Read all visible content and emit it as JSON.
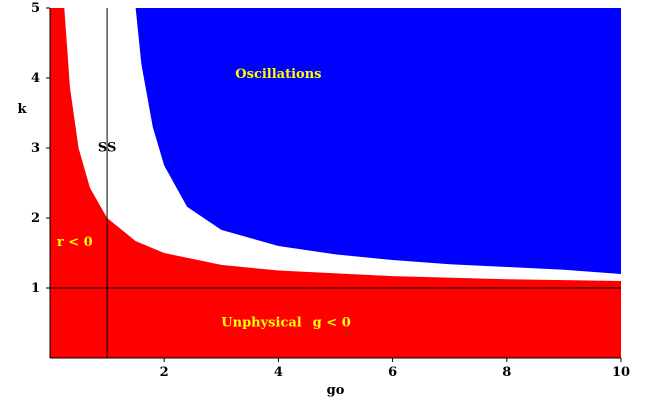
{
  "chart_data": {
    "type": "area",
    "xlabel": "go",
    "ylabel": "k",
    "xlim": [
      0,
      10
    ],
    "ylim": [
      0,
      5
    ],
    "x_ticks": [
      2,
      4,
      6,
      8,
      10
    ],
    "y_ticks": [
      1,
      2,
      3,
      4,
      5
    ],
    "x_tick_labels": [
      "2",
      "4",
      "6",
      "8",
      "10"
    ],
    "y_tick_labels": [
      "1",
      "2",
      "3",
      "4",
      "5"
    ],
    "grid": false,
    "reference_lines": {
      "horizontal_k": 1,
      "vertical_go": 1
    },
    "regions": [
      {
        "name": "Unphysical",
        "label": "Unphysical",
        "condition_label": "g < 0",
        "color": "#ff0000",
        "description_boundary_k_min": 0
      },
      {
        "name": "r < 0",
        "label": "r < 0",
        "color": "#ff0000"
      },
      {
        "name": "SS",
        "label": "SS",
        "color": "#ffffff"
      },
      {
        "name": "Oscillations",
        "label": "Oscillations",
        "color": "#0000ff"
      }
    ],
    "boundaries": {
      "red_upper": {
        "x": [
          0.25,
          0.35,
          0.5,
          0.7,
          1.0,
          1.5,
          2.0,
          3.0,
          4.0,
          6.0,
          8.0,
          10.0
        ],
        "y": [
          5.0,
          3.86,
          3.0,
          2.43,
          2.0,
          1.67,
          1.5,
          1.33,
          1.25,
          1.17,
          1.125,
          1.1
        ]
      },
      "blue_lower": {
        "x": [
          1.5,
          1.6,
          1.8,
          2.0,
          2.4,
          3.0,
          4.0,
          5.0,
          6.0,
          7.0,
          8.0,
          9.0,
          10.0
        ],
        "y": [
          5.0,
          4.2,
          3.3,
          2.75,
          2.16,
          1.83,
          1.6,
          1.48,
          1.4,
          1.34,
          1.3,
          1.26,
          1.2
        ]
      }
    },
    "colors": {
      "unphysical": "#ff0000",
      "oscillations": "#0000ff",
      "stable": "#ffffff",
      "label_yellow": "#ffff00",
      "label_black": "#000000"
    }
  }
}
